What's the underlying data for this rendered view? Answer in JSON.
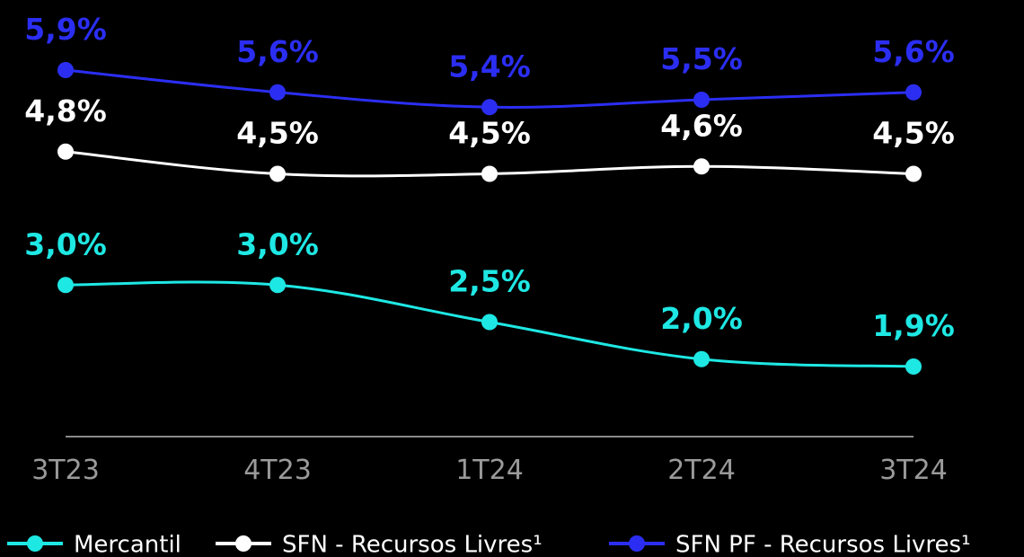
{
  "chart_data": {
    "type": "line",
    "categories": [
      "3T23",
      "4T23",
      "1T24",
      "2T24",
      "3T24"
    ],
    "series": [
      {
        "name": "Mercantil",
        "color": "#1ee8e4",
        "values": [
          3.0,
          3.0,
          2.5,
          2.0,
          1.9
        ],
        "value_labels": [
          "3,0%",
          "3,0%",
          "2,5%",
          "2,0%",
          "1,9%"
        ]
      },
      {
        "name": "SFN - Recursos Livres¹",
        "color": "#ffffff",
        "values": [
          4.8,
          4.5,
          4.5,
          4.6,
          4.5
        ],
        "value_labels": [
          "4,8%",
          "4,5%",
          "4,5%",
          "4,6%",
          "4,5%"
        ]
      },
      {
        "name": "SFN PF - Recursos Livres¹",
        "color": "#2b2ef2",
        "values": [
          5.9,
          5.6,
          5.4,
          5.5,
          5.6
        ],
        "value_labels": [
          "5,9%",
          "5,6%",
          "5,4%",
          "5,5%",
          "5,6%"
        ]
      }
    ]
  }
}
